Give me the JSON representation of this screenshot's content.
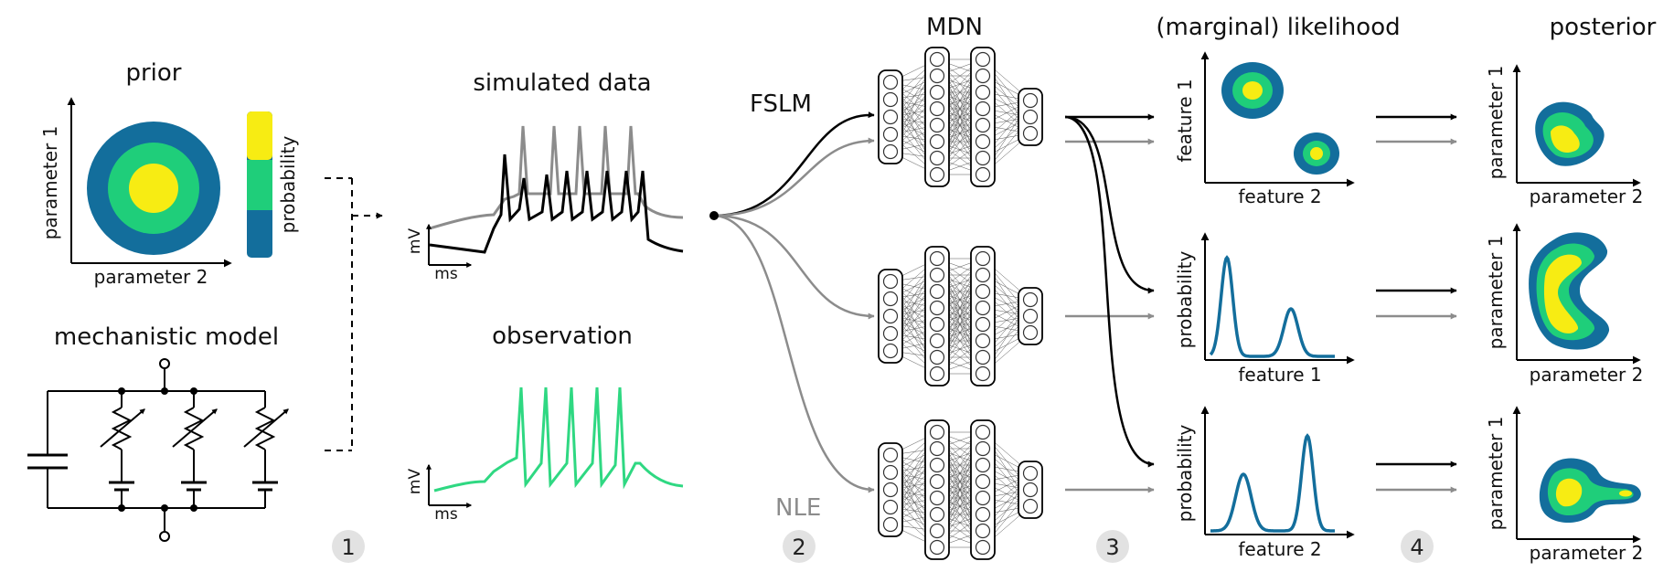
{
  "prior": {
    "title": "prior",
    "xlabel": "parameter 2",
    "ylabel": "parameter 1",
    "colorbar_label": "probability"
  },
  "mechanistic_model": {
    "title": "mechanistic model"
  },
  "simulated_data": {
    "title": "simulated data",
    "ylabel": "mV",
    "xlabel": "ms"
  },
  "observation": {
    "title": "observation",
    "ylabel": "mV",
    "xlabel": "ms"
  },
  "methods": {
    "top": "FSLM",
    "bottom": "NLE"
  },
  "mdn": {
    "title": "MDN"
  },
  "likelihood": {
    "title": "(marginal) likelihood",
    "panels": [
      {
        "xlabel": "feature 2",
        "ylabel": "feature 1"
      },
      {
        "xlabel": "feature 1",
        "ylabel": "probability"
      },
      {
        "xlabel": "feature 2",
        "ylabel": "probability"
      }
    ]
  },
  "posterior": {
    "title": "posterior",
    "panels": [
      {
        "xlabel": "parameter 2",
        "ylabel": "parameter 1"
      },
      {
        "xlabel": "parameter 2",
        "ylabel": "parameter 1"
      },
      {
        "xlabel": "parameter 2",
        "ylabel": "parameter 1"
      }
    ]
  },
  "steps": [
    "1",
    "2",
    "3",
    "4"
  ],
  "colors": {
    "dark_blue": "#136e9c",
    "green": "#1fce7a",
    "yellow": "#f7ec13",
    "gray": "#8c8c8c",
    "black": "#000000",
    "observation_green": "#2fd882"
  }
}
